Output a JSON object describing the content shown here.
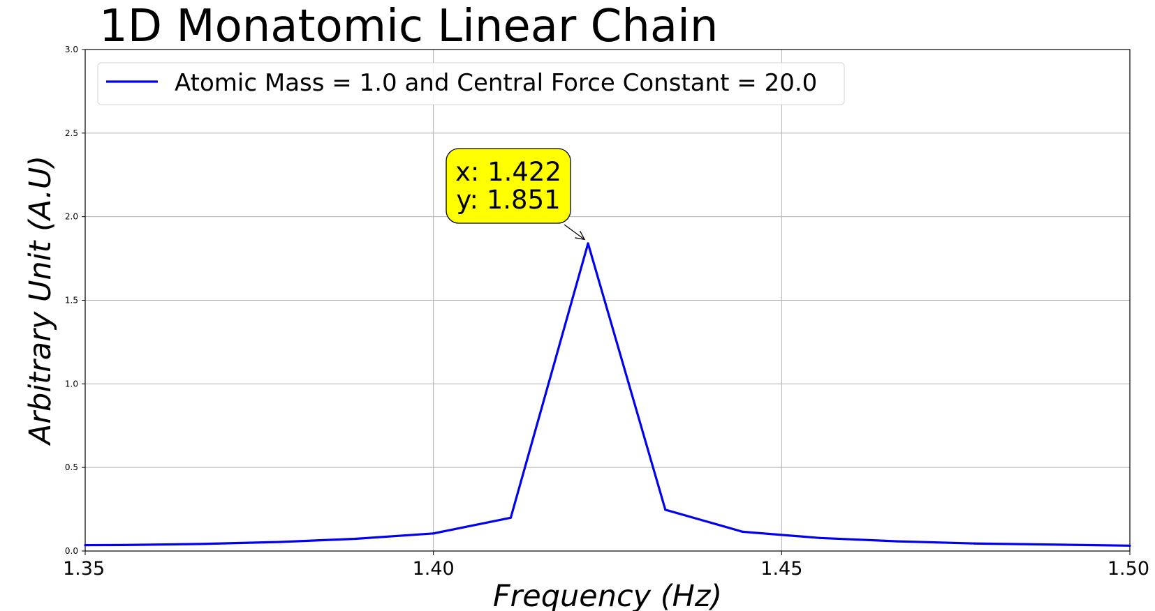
{
  "chart_data": {
    "type": "line",
    "title": "1D Monatomic Linear Chain",
    "xlabel": "Frequency (Hz)",
    "ylabel": "Arbitrary Unit (A.U)",
    "xlim": [
      1.35,
      1.5
    ],
    "ylim": [
      0.0,
      3.0
    ],
    "x_ticks": [
      "1.35",
      "1.40",
      "1.45",
      "1.50"
    ],
    "y_ticks": [
      "0.0",
      "0.5",
      "1.0",
      "1.5",
      "2.0",
      "2.5",
      "3.0"
    ],
    "x_tick_values": [
      1.35,
      1.4,
      1.45,
      1.5
    ],
    "y_tick_values": [
      0.0,
      0.5,
      1.0,
      1.5,
      2.0,
      2.5,
      3.0
    ],
    "grid": true,
    "legend_position": "top-left",
    "series": [
      {
        "name": "Atomic Mass = 1.0 and Central Force Constant = 20.0",
        "color": "#0000ee",
        "x": [
          1.35,
          1.3555,
          1.3666,
          1.3777,
          1.3888,
          1.4,
          1.4111,
          1.4222,
          1.4333,
          1.4444,
          1.4555,
          1.4666,
          1.4777,
          1.5
        ],
        "y": [
          0.035,
          0.036,
          0.042,
          0.054,
          0.073,
          0.105,
          0.199,
          1.84,
          0.247,
          0.115,
          0.078,
          0.058,
          0.045,
          0.032
        ]
      }
    ],
    "annotation": {
      "line1": "x: 1.422",
      "line2": "y: 1.851",
      "x": 1.422,
      "y": 1.851,
      "box_color": "#ffff00"
    }
  }
}
